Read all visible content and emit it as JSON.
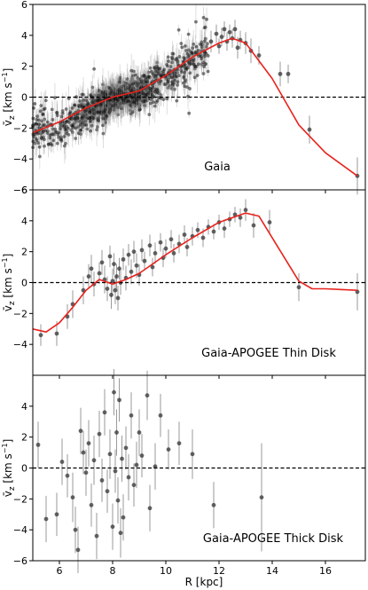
{
  "figure": {
    "xlabel": "R [kpc]",
    "ylabel_main": "v̄",
    "ylabel_sub": "z",
    "ylabel_unit_pre": " [km s",
    "ylabel_unit_exp": "−1",
    "ylabel_unit_post": "]"
  },
  "chart_data": [
    {
      "type": "scatter",
      "title": "Gaia",
      "xlim": [
        5,
        17.5
      ],
      "ylim": [
        -6,
        6
      ],
      "xticks": [
        6,
        8,
        10,
        12,
        14,
        16
      ],
      "yticks": [
        -6,
        -4,
        -2,
        0,
        2,
        4,
        6
      ],
      "reference_line_y": 0,
      "dense_cloud": {
        "x_range": [
          5.0,
          11.6
        ],
        "description_trend": [
          [
            5.0,
            -2.3
          ],
          [
            6.0,
            -1.9
          ],
          [
            7.0,
            -1.0
          ],
          [
            8.0,
            -0.1
          ],
          [
            9.0,
            0.3
          ],
          [
            10.0,
            1.2
          ],
          [
            11.0,
            2.4
          ],
          [
            11.6,
            3.1
          ]
        ]
      },
      "points": [
        {
          "x": 11.7,
          "y": 3.6,
          "err": 0.7
        },
        {
          "x": 11.9,
          "y": 4.1,
          "err": 0.6
        },
        {
          "x": 12.0,
          "y": 3.3,
          "err": 0.5
        },
        {
          "x": 12.1,
          "y": 3.9,
          "err": 0.6
        },
        {
          "x": 12.2,
          "y": 4.4,
          "err": 0.5
        },
        {
          "x": 12.3,
          "y": 3.6,
          "err": 0.6
        },
        {
          "x": 12.4,
          "y": 4.2,
          "err": 0.5
        },
        {
          "x": 12.5,
          "y": 3.8,
          "err": 0.6
        },
        {
          "x": 12.6,
          "y": 4.4,
          "err": 0.6
        },
        {
          "x": 12.7,
          "y": 3.2,
          "err": 0.7
        },
        {
          "x": 12.8,
          "y": 3.7,
          "err": 0.6
        },
        {
          "x": 13.0,
          "y": 3.5,
          "err": 0.7
        },
        {
          "x": 13.2,
          "y": 3.0,
          "err": 0.8
        },
        {
          "x": 13.5,
          "y": 2.7,
          "err": 0.6
        },
        {
          "x": 14.3,
          "y": 1.5,
          "err": 0.8
        },
        {
          "x": 14.6,
          "y": 1.5,
          "err": 0.6
        },
        {
          "x": 15.4,
          "y": -2.1,
          "err": 0.9
        },
        {
          "x": 17.2,
          "y": -5.1,
          "err": 1.2
        }
      ],
      "fit": {
        "x": [
          5.0,
          6.0,
          7.0,
          8.0,
          9.0,
          10.0,
          11.0,
          12.0,
          12.5,
          13.0,
          14.0,
          15.0,
          16.0,
          17.2
        ],
        "y": [
          -2.3,
          -1.6,
          -0.7,
          0.0,
          0.4,
          1.4,
          2.6,
          3.5,
          3.8,
          3.5,
          1.2,
          -1.8,
          -3.6,
          -5.1
        ]
      }
    },
    {
      "type": "scatter",
      "title": "Gaia-APOGEE Thin Disk",
      "xlim": [
        5,
        17.5
      ],
      "ylim": [
        -6,
        6
      ],
      "xticks": [
        6,
        8,
        10,
        12,
        14,
        16
      ],
      "yticks": [
        -4,
        -2,
        0,
        2,
        4,
        6
      ],
      "reference_line_y": 0,
      "points": [
        {
          "x": 5.3,
          "y": -3.4,
          "err": 0.7
        },
        {
          "x": 5.9,
          "y": -3.3,
          "err": 0.8
        },
        {
          "x": 6.3,
          "y": -2.2,
          "err": 0.8
        },
        {
          "x": 6.5,
          "y": -1.4,
          "err": 0.9
        },
        {
          "x": 6.9,
          "y": -0.5,
          "err": 0.9
        },
        {
          "x": 7.1,
          "y": 0.4,
          "err": 0.8
        },
        {
          "x": 7.2,
          "y": 0.9,
          "err": 0.9
        },
        {
          "x": 7.3,
          "y": -0.1,
          "err": 0.8
        },
        {
          "x": 7.5,
          "y": 0.6,
          "err": 0.7
        },
        {
          "x": 7.6,
          "y": 1.3,
          "err": 0.8
        },
        {
          "x": 7.7,
          "y": 0.2,
          "err": 0.9
        },
        {
          "x": 7.8,
          "y": -0.4,
          "err": 0.8
        },
        {
          "x": 7.9,
          "y": 1.7,
          "err": 0.7
        },
        {
          "x": 7.95,
          "y": -0.8,
          "err": 0.9
        },
        {
          "x": 8.0,
          "y": 0.1,
          "err": 0.8
        },
        {
          "x": 8.05,
          "y": 1.2,
          "err": 0.7
        },
        {
          "x": 8.1,
          "y": -0.5,
          "err": 0.9
        },
        {
          "x": 8.15,
          "y": 0.4,
          "err": 0.8
        },
        {
          "x": 8.2,
          "y": -1.0,
          "err": 0.8
        },
        {
          "x": 8.25,
          "y": 0.9,
          "err": 0.7
        },
        {
          "x": 8.3,
          "y": 0.0,
          "err": 0.8
        },
        {
          "x": 8.4,
          "y": 1.5,
          "err": 0.7
        },
        {
          "x": 8.5,
          "y": 0.3,
          "err": 0.8
        },
        {
          "x": 8.6,
          "y": 1.8,
          "err": 0.7
        },
        {
          "x": 8.7,
          "y": 0.7,
          "err": 0.8
        },
        {
          "x": 8.8,
          "y": 2.0,
          "err": 0.7
        },
        {
          "x": 8.9,
          "y": 1.1,
          "err": 0.8
        },
        {
          "x": 9.0,
          "y": 0.5,
          "err": 0.7
        },
        {
          "x": 9.1,
          "y": 2.1,
          "err": 0.7
        },
        {
          "x": 9.2,
          "y": 1.4,
          "err": 0.6
        },
        {
          "x": 9.4,
          "y": 2.4,
          "err": 0.7
        },
        {
          "x": 9.5,
          "y": 1.0,
          "err": 0.6
        },
        {
          "x": 9.6,
          "y": 1.9,
          "err": 0.7
        },
        {
          "x": 9.8,
          "y": 2.6,
          "err": 0.6
        },
        {
          "x": 9.9,
          "y": 1.6,
          "err": 0.6
        },
        {
          "x": 10.0,
          "y": 2.2,
          "err": 0.6
        },
        {
          "x": 10.2,
          "y": 2.8,
          "err": 0.6
        },
        {
          "x": 10.3,
          "y": 1.9,
          "err": 0.6
        },
        {
          "x": 10.5,
          "y": 2.5,
          "err": 0.6
        },
        {
          "x": 10.7,
          "y": 3.1,
          "err": 0.6
        },
        {
          "x": 10.8,
          "y": 2.3,
          "err": 0.6
        },
        {
          "x": 11.0,
          "y": 3.0,
          "err": 0.6
        },
        {
          "x": 11.2,
          "y": 3.4,
          "err": 0.5
        },
        {
          "x": 11.4,
          "y": 2.9,
          "err": 0.6
        },
        {
          "x": 11.6,
          "y": 3.6,
          "err": 0.5
        },
        {
          "x": 11.8,
          "y": 3.3,
          "err": 0.5
        },
        {
          "x": 12.0,
          "y": 3.9,
          "err": 0.5
        },
        {
          "x": 12.2,
          "y": 3.5,
          "err": 0.6
        },
        {
          "x": 12.4,
          "y": 4.1,
          "err": 0.5
        },
        {
          "x": 12.6,
          "y": 4.4,
          "err": 0.5
        },
        {
          "x": 12.8,
          "y": 4.2,
          "err": 0.6
        },
        {
          "x": 13.0,
          "y": 4.7,
          "err": 0.7
        },
        {
          "x": 13.3,
          "y": 3.7,
          "err": 0.8
        },
        {
          "x": 13.9,
          "y": 3.9,
          "err": 0.8
        },
        {
          "x": 15.0,
          "y": -0.3,
          "err": 0.9
        },
        {
          "x": 17.2,
          "y": -0.6,
          "err": 1.2
        }
      ],
      "fit": {
        "x": [
          5.0,
          5.5,
          6.0,
          6.5,
          7.0,
          7.5,
          8.0,
          8.5,
          9.0,
          10.0,
          11.0,
          12.0,
          13.0,
          13.5,
          14.5,
          15.0,
          15.5,
          16.0,
          17.2
        ],
        "y": [
          -3.0,
          -3.2,
          -2.6,
          -1.6,
          -0.5,
          0.2,
          -0.1,
          0.2,
          0.6,
          1.8,
          2.9,
          3.9,
          4.5,
          4.3,
          1.5,
          0.1,
          -0.4,
          -0.4,
          -0.5
        ]
      }
    },
    {
      "type": "scatter",
      "title": "Gaia-APOGEE Thick Disk",
      "xlim": [
        5,
        17.5
      ],
      "ylim": [
        -6,
        6
      ],
      "xticks": [
        6,
        8,
        10,
        12,
        14,
        16
      ],
      "yticks": [
        -6,
        -4,
        -2,
        0,
        2,
        4
      ],
      "reference_line_y": 0,
      "points": [
        {
          "x": 5.2,
          "y": 1.5,
          "err": 1.5
        },
        {
          "x": 5.5,
          "y": -3.3,
          "err": 1.5
        },
        {
          "x": 5.9,
          "y": -3.0,
          "err": 1.4
        },
        {
          "x": 6.1,
          "y": 0.4,
          "err": 1.5
        },
        {
          "x": 6.3,
          "y": -0.5,
          "err": 1.4
        },
        {
          "x": 6.5,
          "y": -1.9,
          "err": 1.6
        },
        {
          "x": 6.6,
          "y": -4.0,
          "err": 1.5
        },
        {
          "x": 6.7,
          "y": -5.3,
          "err": 1.5
        },
        {
          "x": 6.8,
          "y": 2.4,
          "err": 1.5
        },
        {
          "x": 6.9,
          "y": 1.0,
          "err": 1.4
        },
        {
          "x": 7.0,
          "y": -0.3,
          "err": 1.5
        },
        {
          "x": 7.1,
          "y": 1.6,
          "err": 1.5
        },
        {
          "x": 7.2,
          "y": -2.4,
          "err": 1.4
        },
        {
          "x": 7.3,
          "y": 0.5,
          "err": 1.6
        },
        {
          "x": 7.4,
          "y": -4.4,
          "err": 1.5
        },
        {
          "x": 7.5,
          "y": 2.2,
          "err": 1.5
        },
        {
          "x": 7.6,
          "y": -0.8,
          "err": 1.4
        },
        {
          "x": 7.7,
          "y": 3.6,
          "err": 1.5
        },
        {
          "x": 7.8,
          "y": -1.5,
          "err": 1.4
        },
        {
          "x": 7.9,
          "y": 0.9,
          "err": 1.6
        },
        {
          "x": 8.0,
          "y": -3.8,
          "err": 1.5
        },
        {
          "x": 8.05,
          "y": 4.9,
          "err": 1.5
        },
        {
          "x": 8.1,
          "y": -0.2,
          "err": 1.4
        },
        {
          "x": 8.15,
          "y": 2.3,
          "err": 1.5
        },
        {
          "x": 8.2,
          "y": -2.1,
          "err": 1.5
        },
        {
          "x": 8.25,
          "y": 4.4,
          "err": 1.4
        },
        {
          "x": 8.3,
          "y": -4.2,
          "err": 1.6
        },
        {
          "x": 8.35,
          "y": 0.6,
          "err": 1.5
        },
        {
          "x": 8.4,
          "y": -3.2,
          "err": 1.5
        },
        {
          "x": 8.5,
          "y": 1.3,
          "err": 1.4
        },
        {
          "x": 8.6,
          "y": -0.6,
          "err": 1.5
        },
        {
          "x": 8.7,
          "y": 3.4,
          "err": 1.5
        },
        {
          "x": 8.8,
          "y": -1.1,
          "err": 1.4
        },
        {
          "x": 8.9,
          "y": 0.2,
          "err": 1.5
        },
        {
          "x": 9.0,
          "y": 2.3,
          "err": 1.5
        },
        {
          "x": 9.1,
          "y": 0.8,
          "err": 1.4
        },
        {
          "x": 9.3,
          "y": 4.7,
          "err": 1.6
        },
        {
          "x": 9.4,
          "y": -2.6,
          "err": 1.5
        },
        {
          "x": 9.6,
          "y": 0.1,
          "err": 1.5
        },
        {
          "x": 9.8,
          "y": 3.4,
          "err": 1.4
        },
        {
          "x": 10.1,
          "y": 1.2,
          "err": 1.3
        },
        {
          "x": 10.5,
          "y": 1.6,
          "err": 1.4
        },
        {
          "x": 11.0,
          "y": 0.9,
          "err": 1.6
        },
        {
          "x": 11.8,
          "y": -2.4,
          "err": 1.5
        },
        {
          "x": 13.6,
          "y": -1.9,
          "err": 3.5
        }
      ],
      "fit": null
    }
  ]
}
